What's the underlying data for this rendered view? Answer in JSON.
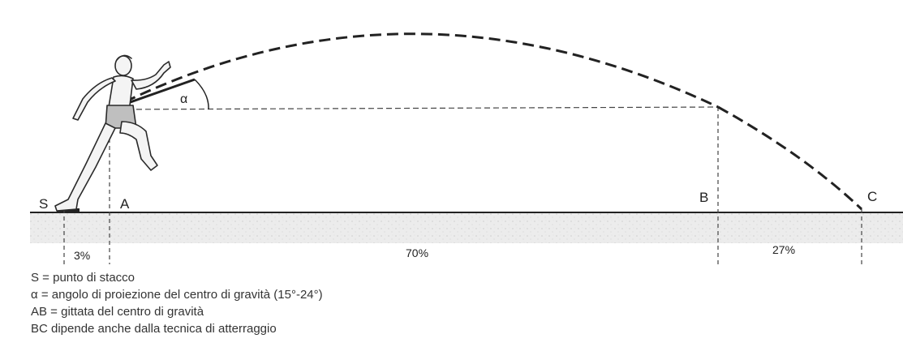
{
  "points": {
    "s": "S",
    "a": "A",
    "b": "B",
    "c": "C"
  },
  "angle_symbol": "α",
  "segments": {
    "sa": "3%",
    "ab": "70%",
    "bc": "27%"
  },
  "legend": [
    "S = punto di stacco",
    "α = angolo di proiezione del centro di gravità (15°-24°)",
    "AB = gittata del centro di gravità",
    "BC dipende anche dalla tecnica di atterraggio"
  ],
  "colors": {
    "ink": "#222222",
    "ground": "#ebebeb"
  }
}
